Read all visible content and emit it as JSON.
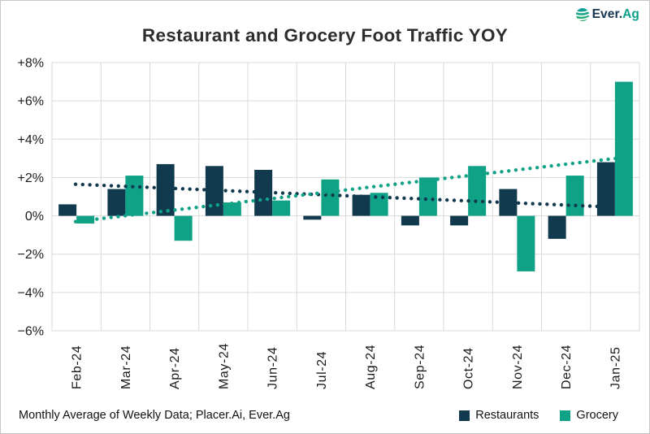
{
  "title": "Restaurant and Grocery Foot Traffic YOY",
  "logo": {
    "icon": "ever-ag-globe-icon",
    "text_primary": "Ever.",
    "text_accent": "Ag",
    "color_primary": "#14334e",
    "color_accent": "#0ca189"
  },
  "footer": {
    "source": "Monthly Average of Weekly Data; Placer.Ai, Ever.Ag"
  },
  "legend": [
    {
      "label": "Restaurants",
      "color": "#113a4f"
    },
    {
      "label": "Grocery",
      "color": "#10a287"
    }
  ],
  "chart_data": {
    "type": "bar",
    "title": "Restaurant and Grocery Foot Traffic YOY",
    "xlabel": "",
    "ylabel": "",
    "categories": [
      "Feb-24",
      "Mar-24",
      "Apr-24",
      "May-24",
      "Jun-24",
      "Jul-24",
      "Aug-24",
      "Sep-24",
      "Oct-24",
      "Nov-24",
      "Dec-24",
      "Jan-25"
    ],
    "series": [
      {
        "name": "Restaurants",
        "color": "#113a4f",
        "values": [
          0.6,
          1.4,
          2.7,
          2.6,
          2.4,
          -0.2,
          1.1,
          -0.5,
          -0.5,
          1.4,
          -1.2,
          2.8
        ]
      },
      {
        "name": "Grocery",
        "color": "#10a287",
        "values": [
          -0.4,
          2.1,
          -1.3,
          0.7,
          0.8,
          1.9,
          1.2,
          2.0,
          2.6,
          -2.9,
          2.1,
          7.0
        ]
      }
    ],
    "trendlines": [
      {
        "series": "Restaurants",
        "style": "dotted",
        "color": "#113a4f",
        "start": 1.65,
        "end": 0.45
      },
      {
        "series": "Grocery",
        "style": "dotted",
        "color": "#10a287",
        "start": -0.3,
        "end": 3.0
      }
    ],
    "ylim": [
      -6,
      8
    ],
    "ytick_step": 2,
    "ytick_labels": [
      "+8%",
      "+6%",
      "+4%",
      "+2%",
      "0%",
      "−2%",
      "−4%",
      "−6%"
    ],
    "grid": true,
    "grid_color": "#d9d9d9",
    "legend_position": "bottom-right",
    "units": "percent YOY"
  }
}
